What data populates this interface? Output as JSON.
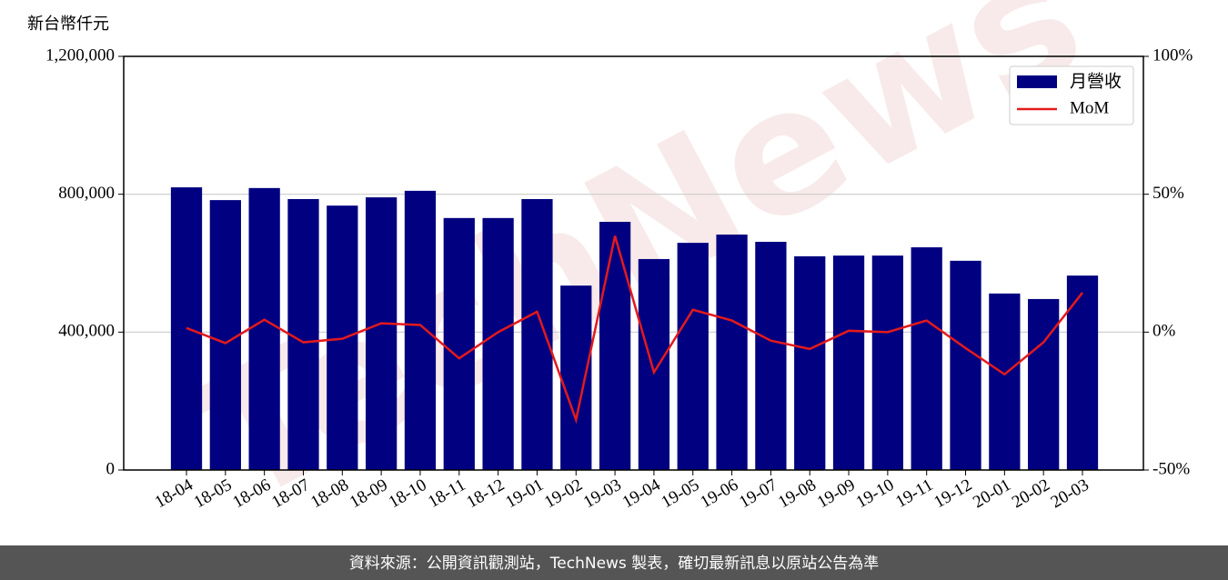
{
  "chart_data": {
    "type": "bar-line",
    "y_label": "新台幣仟元",
    "watermark": "TechNews",
    "source": "資料來源：公開資訊觀測站，TechNews 製表，確切最新訊息以原站公告為準",
    "categories": [
      "18-04",
      "18-05",
      "18-06",
      "18-07",
      "18-08",
      "18-09",
      "18-10",
      "18-11",
      "18-12",
      "19-01",
      "19-02",
      "19-03",
      "19-04",
      "19-05",
      "19-06",
      "19-07",
      "19-08",
      "19-09",
      "19-10",
      "19-11",
      "19-12",
      "20-01",
      "20-02",
      "20-03"
    ],
    "series": [
      {
        "name": "月營收",
        "type": "bar",
        "color": "#000080",
        "values": [
          820000,
          783000,
          818000,
          786000,
          767000,
          791000,
          810000,
          731000,
          731000,
          786000,
          535000,
          720000,
          612000,
          659000,
          683000,
          662000,
          620000,
          622000,
          622000,
          646000,
          607000,
          512000,
          496000,
          564000
        ]
      },
      {
        "name": "MoM",
        "type": "line",
        "axis": "y2",
        "color": "#e31a1c",
        "values": [
          1.5,
          -4,
          4.5,
          -3.7,
          -2.4,
          3.2,
          2.6,
          -9.5,
          0,
          7.4,
          -31.8,
          34.9,
          -14.6,
          8.1,
          4.2,
          -3.1,
          -6.1,
          0.5,
          0,
          4.2,
          -5.8,
          -15.3,
          -3.7,
          14.3
        ]
      }
    ],
    "ylim": [
      0,
      1200000
    ],
    "yticks": [
      0,
      {
        "value": 400000,
        "label": "400,000"
      },
      {
        "value": 800000,
        "label": "800,000"
      },
      {
        "value": 1200000,
        "label": "1,200,000"
      }
    ],
    "y2lim": [
      -50,
      100
    ],
    "y2ticks": [
      {
        "value": -50,
        "label": "-50%"
      },
      {
        "value": 0,
        "label": "0%"
      },
      {
        "value": 50,
        "label": "50%"
      },
      {
        "value": 100,
        "label": "100%"
      }
    ],
    "grid": true,
    "legend": "upper right"
  }
}
